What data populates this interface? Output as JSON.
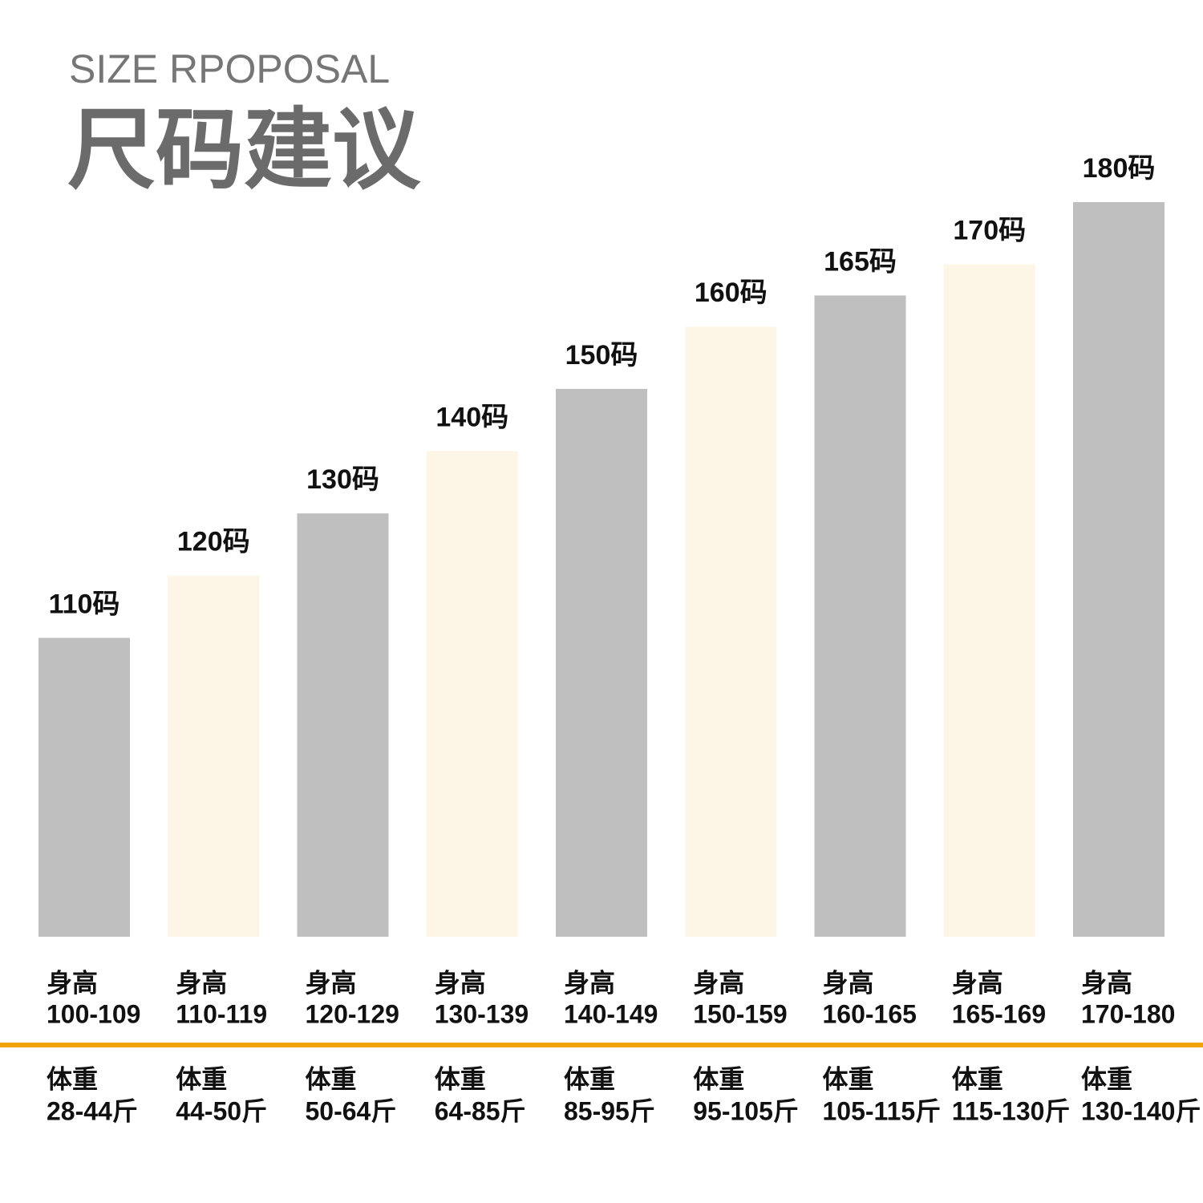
{
  "chart_data": {
    "type": "bar",
    "subtitle": "SIZE RPOPOSAL",
    "title": "尺码建议",
    "values": [
      110,
      120,
      130,
      140,
      150,
      160,
      165,
      170,
      180
    ],
    "value_labels": [
      "110码",
      "120码",
      "130码",
      "140码",
      "150码",
      "160码",
      "165码",
      "170码",
      "180码"
    ],
    "colors": [
      "#bfbfbf",
      "#fdf6e6",
      "#bfbfbf",
      "#fdf6e6",
      "#bfbfbf",
      "#fdf6e6",
      "#bfbfbf",
      "#fdf6e6",
      "#bfbfbf"
    ],
    "ylim": [
      62,
      180
    ],
    "height_label": "身高",
    "categories": [
      "100-109",
      "110-119",
      "120-129",
      "130-139",
      "140-149",
      "150-159",
      "160-165",
      "165-169",
      "170-180"
    ],
    "weight_label": "体重",
    "weights": [
      "28-44斤",
      "44-50斤",
      "50-64斤",
      "64-85斤",
      "85-95斤",
      "95-105斤",
      "105-115斤",
      "115-130斤",
      "130-140斤"
    ],
    "divider_color": "#f0a30a"
  }
}
